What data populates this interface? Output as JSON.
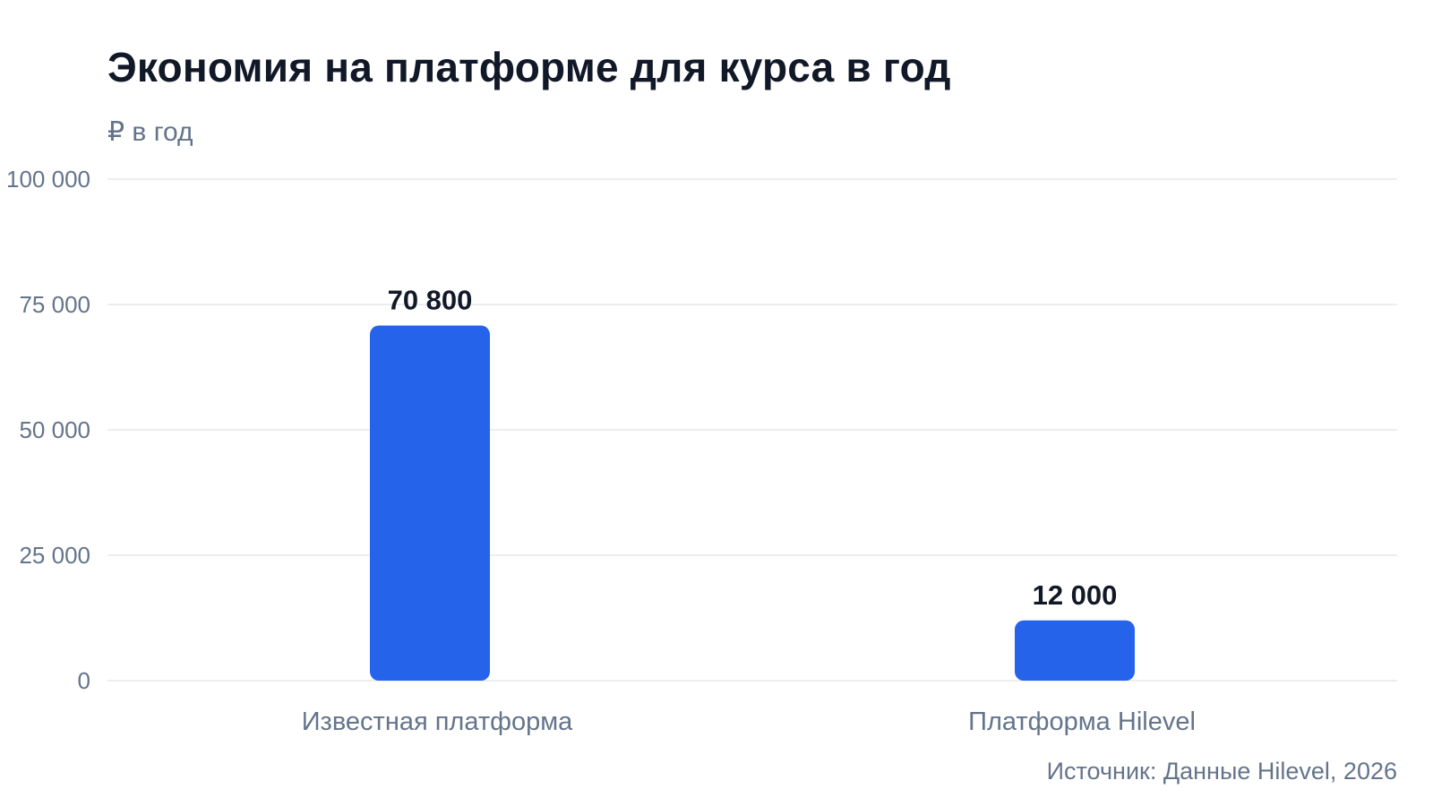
{
  "chart_data": {
    "type": "bar",
    "title": "Экономия на платформе для курса в год",
    "subtitle": "₽ в год",
    "categories": [
      "Известная платформа",
      "Платформа Hilevel"
    ],
    "values": [
      70800,
      12000
    ],
    "data_labels": [
      "70 800",
      "12 000"
    ],
    "ylim": [
      0,
      100000
    ],
    "yticks": [
      0,
      25000,
      50000,
      75000,
      100000
    ],
    "ytick_labels": [
      "0",
      "25 000",
      "50 000",
      "75 000",
      "100 000"
    ],
    "grid": true,
    "legend": false,
    "bar_color": "#2563eb",
    "source": "Источник: Данные Hilevel, 2026"
  }
}
